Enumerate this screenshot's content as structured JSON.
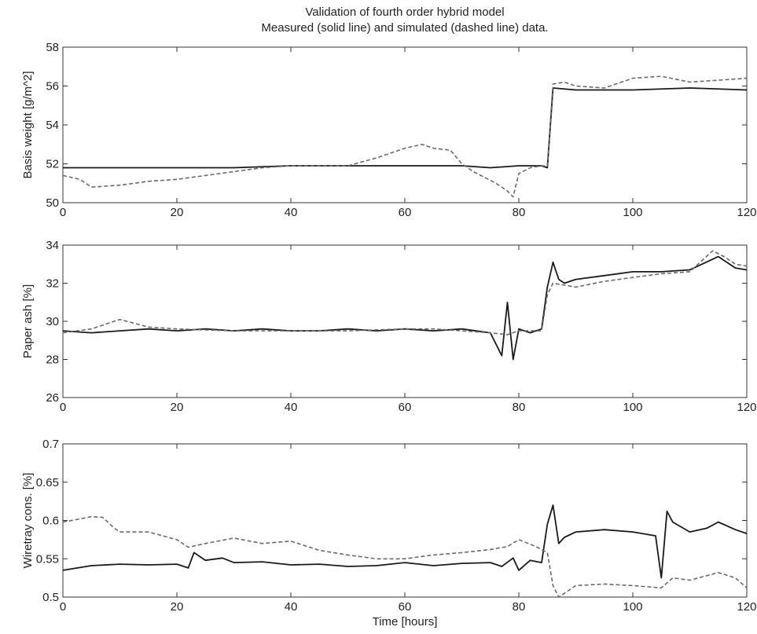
{
  "title_line1": "Validation of fourth order hybrid model",
  "title_line2": "Measured (solid line) and simulated (dashed line) data.",
  "colors": {
    "measured": "#1a1a1a",
    "simulated": "#6a6a6a",
    "axes": "#333333"
  },
  "chart_data": [
    {
      "type": "line",
      "ylabel": "Basis weight [g/m^2]",
      "xlabel": "",
      "xlim": [
        0,
        120
      ],
      "ylim": [
        50,
        58
      ],
      "xticks": [
        0,
        20,
        40,
        60,
        80,
        100,
        120
      ],
      "yticks": [
        50,
        52,
        54,
        56,
        58
      ],
      "grid": false,
      "series": [
        {
          "style": "solid",
          "x": [
            0,
            10,
            20,
            30,
            40,
            50,
            60,
            70,
            75,
            80,
            84,
            85,
            86,
            90,
            100,
            110,
            120
          ],
          "y": [
            51.8,
            51.8,
            51.8,
            51.8,
            51.9,
            51.9,
            51.9,
            51.9,
            51.8,
            51.9,
            51.9,
            51.8,
            55.9,
            55.8,
            55.8,
            55.9,
            55.8
          ]
        },
        {
          "style": "dashed",
          "x": [
            0,
            3,
            5,
            10,
            15,
            20,
            25,
            30,
            35,
            40,
            45,
            50,
            55,
            60,
            63,
            65,
            68,
            70,
            72,
            74,
            76,
            78,
            79,
            80,
            82,
            84,
            85,
            86,
            88,
            90,
            95,
            100,
            105,
            110,
            115,
            120
          ],
          "y": [
            51.4,
            51.2,
            50.8,
            50.9,
            51.1,
            51.2,
            51.4,
            51.6,
            51.8,
            51.9,
            51.9,
            51.9,
            52.3,
            52.8,
            53.0,
            52.8,
            52.7,
            52.0,
            51.6,
            51.3,
            51.0,
            50.6,
            50.3,
            51.5,
            51.8,
            51.9,
            51.9,
            56.1,
            56.2,
            56.0,
            55.9,
            56.4,
            56.5,
            56.2,
            56.3,
            56.4
          ]
        }
      ]
    },
    {
      "type": "line",
      "ylabel": "Paper ash [%]",
      "xlabel": "",
      "xlim": [
        0,
        120
      ],
      "ylim": [
        26,
        34
      ],
      "xticks": [
        0,
        20,
        40,
        60,
        80,
        100,
        120
      ],
      "yticks": [
        26,
        28,
        30,
        32,
        34
      ],
      "grid": false,
      "series": [
        {
          "style": "solid",
          "x": [
            0,
            5,
            10,
            15,
            20,
            25,
            30,
            35,
            40,
            45,
            50,
            55,
            60,
            65,
            70,
            75,
            77,
            78,
            79,
            80,
            82,
            84,
            85,
            86,
            87,
            88,
            90,
            95,
            100,
            105,
            110,
            115,
            118,
            120
          ],
          "y": [
            29.5,
            29.4,
            29.5,
            29.6,
            29.5,
            29.6,
            29.5,
            29.6,
            29.5,
            29.5,
            29.6,
            29.5,
            29.6,
            29.5,
            29.6,
            29.4,
            28.2,
            31.0,
            28.0,
            29.6,
            29.4,
            29.6,
            31.8,
            33.1,
            32.2,
            32.0,
            32.2,
            32.4,
            32.6,
            32.6,
            32.7,
            33.4,
            32.8,
            32.7
          ]
        },
        {
          "style": "dashed",
          "x": [
            0,
            5,
            8,
            10,
            15,
            20,
            30,
            40,
            50,
            60,
            65,
            70,
            75,
            78,
            80,
            84,
            85,
            86,
            90,
            95,
            100,
            105,
            110,
            114,
            116,
            118,
            120
          ],
          "y": [
            29.4,
            29.6,
            29.9,
            30.1,
            29.7,
            29.6,
            29.5,
            29.5,
            29.5,
            29.6,
            29.6,
            29.5,
            29.4,
            29.3,
            29.5,
            29.5,
            31.4,
            32.0,
            31.8,
            32.1,
            32.3,
            32.5,
            32.6,
            33.7,
            33.4,
            33.0,
            32.9
          ]
        }
      ]
    },
    {
      "type": "line",
      "ylabel": "Wiretray cons. [%]",
      "xlabel": "Time [hours]",
      "xlim": [
        0,
        120
      ],
      "ylim": [
        0.5,
        0.7
      ],
      "xticks": [
        0,
        20,
        40,
        60,
        80,
        100,
        120
      ],
      "yticks": [
        0.5,
        0.55,
        0.6,
        0.65,
        0.7
      ],
      "grid": false,
      "series": [
        {
          "style": "solid",
          "x": [
            0,
            5,
            10,
            15,
            20,
            22,
            23,
            25,
            28,
            30,
            35,
            40,
            45,
            50,
            55,
            60,
            65,
            70,
            75,
            77,
            79,
            80,
            82,
            84,
            85,
            86,
            87,
            88,
            90,
            95,
            100,
            104,
            105,
            106,
            107,
            110,
            113,
            115,
            118,
            120
          ],
          "y": [
            0.535,
            0.541,
            0.543,
            0.542,
            0.543,
            0.538,
            0.558,
            0.548,
            0.551,
            0.545,
            0.546,
            0.542,
            0.543,
            0.54,
            0.541,
            0.545,
            0.541,
            0.544,
            0.545,
            0.54,
            0.551,
            0.535,
            0.548,
            0.545,
            0.595,
            0.62,
            0.57,
            0.578,
            0.585,
            0.588,
            0.585,
            0.58,
            0.525,
            0.612,
            0.598,
            0.585,
            0.59,
            0.598,
            0.588,
            0.583
          ]
        },
        {
          "style": "dashed",
          "x": [
            0,
            3,
            5,
            7,
            9,
            10,
            15,
            20,
            22,
            25,
            30,
            35,
            40,
            45,
            50,
            55,
            60,
            65,
            70,
            75,
            78,
            80,
            83,
            85,
            86,
            87,
            90,
            95,
            100,
            105,
            107,
            110,
            113,
            115,
            118,
            120
          ],
          "y": [
            0.598,
            0.602,
            0.605,
            0.604,
            0.59,
            0.585,
            0.585,
            0.575,
            0.565,
            0.57,
            0.577,
            0.57,
            0.573,
            0.561,
            0.555,
            0.55,
            0.55,
            0.555,
            0.558,
            0.562,
            0.566,
            0.575,
            0.566,
            0.558,
            0.515,
            0.5,
            0.515,
            0.517,
            0.515,
            0.512,
            0.525,
            0.522,
            0.528,
            0.532,
            0.525,
            0.512
          ]
        }
      ]
    }
  ]
}
